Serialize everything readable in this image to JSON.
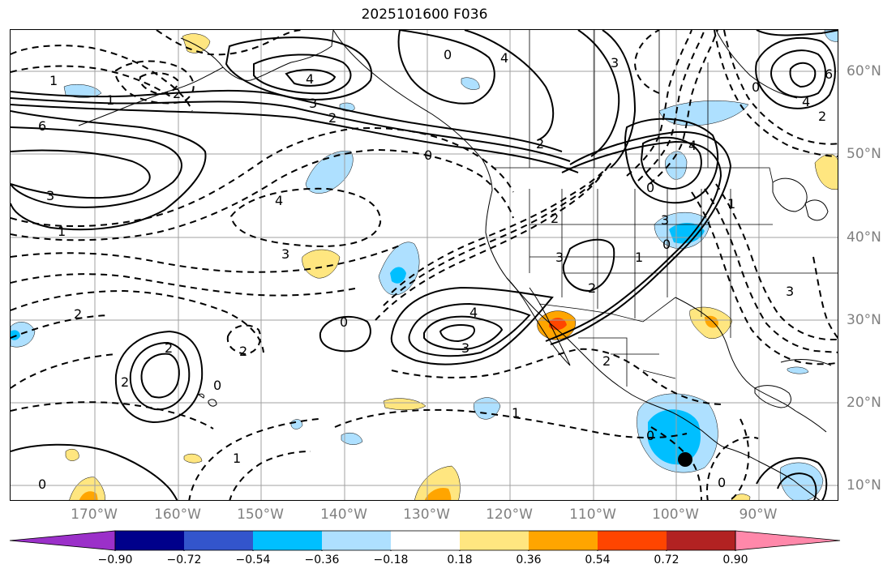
{
  "title": "2025101600 F036",
  "lon_labels": [
    "170°W",
    "160°W",
    "150°W",
    "140°W",
    "130°W",
    "120°W",
    "110°W",
    "100°W",
    "90°W"
  ],
  "lat_labels": [
    "60°N",
    "50°N",
    "40°N",
    "30°N",
    "20°N",
    "10°N"
  ],
  "colorbar": {
    "ticks": [
      "−0.90",
      "−0.72",
      "−0.54",
      "−0.36",
      "−0.18",
      "0.18",
      "0.36",
      "0.54",
      "0.72",
      "0.90"
    ],
    "colors": [
      "#9b30c9",
      "#00008b",
      "#3355cc",
      "#00bfff",
      "#aee0ff",
      "#ffffff",
      "#ffe680",
      "#ffa500",
      "#ff4500",
      "#b22222",
      "#ff88aa"
    ]
  },
  "contour_labels": [
    "0",
    "1",
    "2",
    "3",
    "4",
    "6"
  ],
  "colors": {
    "land_line": "#000000",
    "grid": "#a0a0a0",
    "axis_label": "#808080"
  }
}
